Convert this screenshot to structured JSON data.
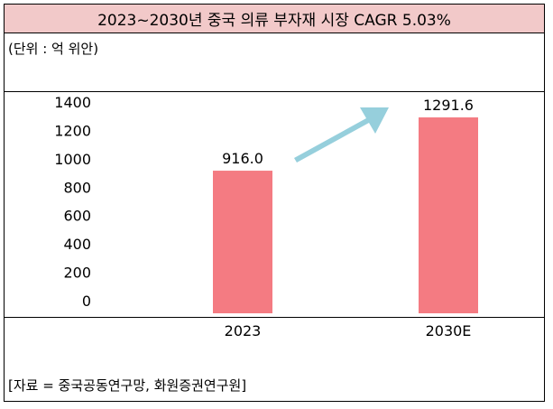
{
  "chart_data": {
    "type": "bar",
    "title": "2023~2030년 중국 의류 부자재 시장 CAGR 5.03%",
    "unit_label": "(단위 : 억 위안)",
    "categories": [
      "2023",
      "2030E"
    ],
    "values": [
      916.0,
      1291.6
    ],
    "value_labels": [
      "916.0",
      "1291.6"
    ],
    "ylim": [
      0,
      1400
    ],
    "yticks": [
      "0",
      "200",
      "400",
      "600",
      "800",
      "1000",
      "1200",
      "1400"
    ],
    "grid": false,
    "bar_color": "#f47b82",
    "arrow_color": "#96cfdc",
    "source": "[자료 = 중국공동연구망, 화원증권연구원]"
  }
}
